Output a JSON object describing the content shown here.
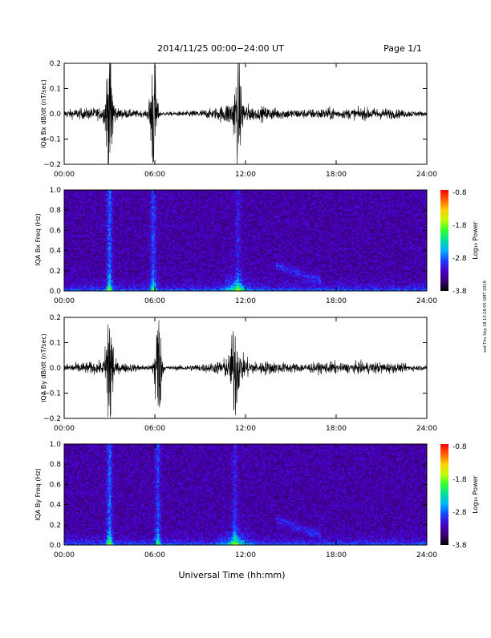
{
  "header": {
    "title": "2014/11/25  00:00−24:00 UT",
    "page": "Page 1/1"
  },
  "xlabel": "Universal Time (hh:mm)",
  "side_stamp": "ssd Thu Sep 18 13:18:55 GMT 2019",
  "colorbar": {
    "label": "Log₁₀ Power",
    "ticks": [
      "-0.8",
      "-1.8",
      "-2.8",
      "-3.8"
    ],
    "range": [
      -3.8,
      -0.8
    ]
  },
  "colors": {
    "colormap": [
      "#000000",
      "#3a0075",
      "#4a00c8",
      "#1a40ff",
      "#00b0ff",
      "#00e0a0",
      "#30ff30",
      "#c0ff00",
      "#ffd000",
      "#ff6000",
      "#ff0000"
    ]
  },
  "chart_data": [
    {
      "type": "line",
      "ylabel": "IQA Bx dB/dt (nT/sec)",
      "xlim": [
        "00:00",
        "24:00"
      ],
      "ylim": [
        -0.2,
        0.2
      ],
      "xticks": [
        "00:00",
        "06:00",
        "12:00",
        "18:00",
        "24:00"
      ],
      "yticks": [
        "0.2",
        "0.1",
        "0.0",
        "−0.1",
        "−0.2"
      ],
      "grid": false,
      "bursts": [
        {
          "time_hr": 3.0,
          "amplitude": 0.25
        },
        {
          "time_hr": 5.9,
          "amplitude": 0.2
        },
        {
          "time_hr": 11.5,
          "amplitude": 0.12
        }
      ]
    },
    {
      "type": "heatmap",
      "ylabel": "IQA Bx Freq (Hz)",
      "xlim": [
        "00:00",
        "24:00"
      ],
      "ylim": [
        0.0,
        1.0
      ],
      "xticks": [
        "00:00",
        "06:00",
        "12:00",
        "18:00",
        "24:00"
      ],
      "yticks": [
        "1.0",
        "0.8",
        "0.6",
        "0.4",
        "0.2",
        "0.0"
      ]
    },
    {
      "type": "line",
      "ylabel": "IQA By dB/dt (nT/sec)",
      "xlim": [
        "00:00",
        "24:00"
      ],
      "ylim": [
        -0.2,
        0.2
      ],
      "xticks": [
        "00:00",
        "06:00",
        "12:00",
        "18:00",
        "24:00"
      ],
      "yticks": [
        "0.2",
        "0.1",
        "0.0",
        "−0.1",
        "−0.2"
      ],
      "grid": false,
      "bursts": [
        {
          "time_hr": 3.0,
          "amplitude": 0.25
        },
        {
          "time_hr": 6.2,
          "amplitude": 0.2
        },
        {
          "time_hr": 11.3,
          "amplitude": 0.13
        }
      ]
    },
    {
      "type": "heatmap",
      "ylabel": "IQA By Freq (Hz)",
      "xlim": [
        "00:00",
        "24:00"
      ],
      "ylim": [
        0.0,
        1.0
      ],
      "xticks": [
        "00:00",
        "06:00",
        "12:00",
        "18:00",
        "24:00"
      ],
      "yticks": [
        "1.0",
        "0.8",
        "0.6",
        "0.4",
        "0.2",
        "0.0"
      ]
    }
  ]
}
